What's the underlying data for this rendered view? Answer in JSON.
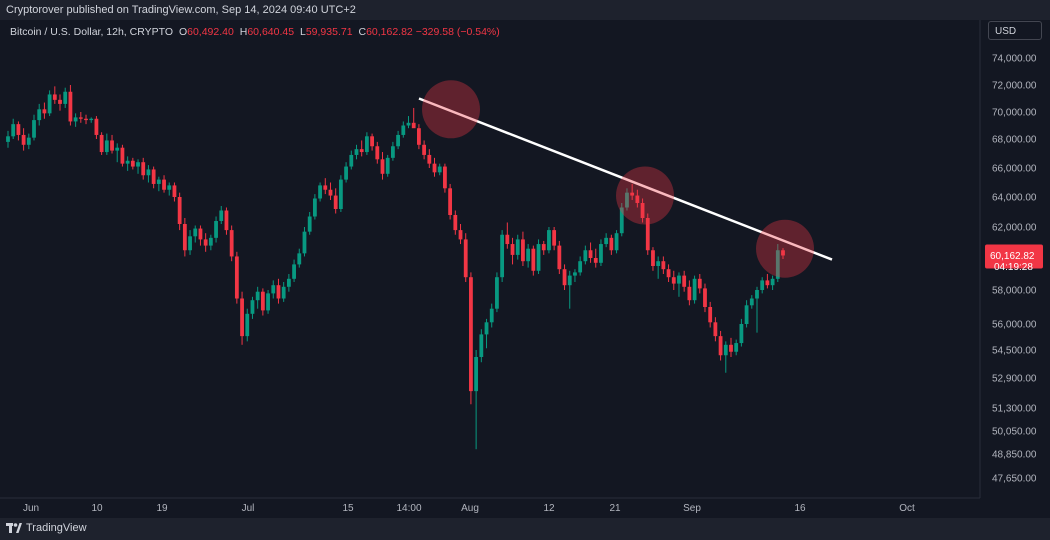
{
  "header": {
    "published": "Cryptorover published on TradingView.com, Sep 14, 2024 09:40 UTC+2"
  },
  "legend": {
    "symbol": "Bitcoin / U.S. Dollar, 12h, CRYPTO",
    "o_label": "O",
    "o_value": "60,492.40",
    "h_label": "H",
    "h_value": "60,640.45",
    "l_label": "L",
    "l_value": "59,935.71",
    "c_label": "C",
    "c_value": "60,162.82",
    "change": "−329.58 (−0.54%)"
  },
  "currency": "USD",
  "price_badge": {
    "price": "60,162.82",
    "countdown": "04:19:28"
  },
  "footer": {
    "brand": "TradingView"
  },
  "colors": {
    "up": "#089981",
    "down": "#f23645",
    "background": "#131722",
    "trendline": "#ffffff",
    "marker": "#f23645"
  },
  "chart_data": {
    "type": "candlestick",
    "y_ticks": [
      "74,000.00",
      "72,000.00",
      "70,000.00",
      "68,000.00",
      "66,000.00",
      "64,000.00",
      "62,000.00",
      "60,000.00",
      "58,000.00",
      "56,000.00",
      "54,500.00",
      "52,900.00",
      "51,300.00",
      "50,050.00",
      "48,850.00",
      "47,650.00"
    ],
    "x_ticks": [
      "Jun",
      "10",
      "19",
      "Jul",
      "15",
      "14:00",
      "Aug",
      "12",
      "21",
      "Sep",
      "16",
      "Oct"
    ],
    "trendline": {
      "start": [
        "2024-07-23",
        71000
      ],
      "end": [
        "2024-09-21",
        59900
      ]
    },
    "touch_points": [
      [
        "2024-07-27",
        70200
      ],
      [
        "2024-08-26",
        64100
      ],
      [
        "2024-09-14",
        60600
      ]
    ],
    "last_price": 60162.82,
    "candles": [
      [
        67800,
        68600,
        67400,
        68200
      ],
      [
        68200,
        69500,
        68000,
        69100
      ],
      [
        69100,
        69300,
        67900,
        68300
      ],
      [
        68300,
        68800,
        67200,
        67600
      ],
      [
        67600,
        68400,
        67300,
        68100
      ],
      [
        68100,
        69800,
        67900,
        69400
      ],
      [
        69400,
        70600,
        69000,
        70200
      ],
      [
        70200,
        70700,
        69500,
        69900
      ],
      [
        69900,
        71600,
        69700,
        71300
      ],
      [
        71300,
        71900,
        70600,
        70900
      ],
      [
        70900,
        71300,
        70100,
        70600
      ],
      [
        70600,
        71800,
        70300,
        71500
      ],
      [
        71500,
        72000,
        69000,
        69300
      ],
      [
        69300,
        69900,
        68900,
        69600
      ],
      [
        69600,
        70000,
        69200,
        69500
      ],
      [
        69500,
        69800,
        69100,
        69400
      ],
      [
        69400,
        69600,
        69200,
        69500
      ],
      [
        69500,
        69700,
        68000,
        68300
      ],
      [
        68300,
        68500,
        66900,
        67100
      ],
      [
        67100,
        68400,
        66900,
        67900
      ],
      [
        67900,
        68300,
        67000,
        67200
      ],
      [
        67200,
        67700,
        66400,
        67400
      ],
      [
        67400,
        67600,
        66100,
        66300
      ],
      [
        66300,
        66800,
        65800,
        66500
      ],
      [
        66500,
        66700,
        65900,
        66100
      ],
      [
        66100,
        66600,
        65600,
        66400
      ],
      [
        66400,
        66700,
        65200,
        65500
      ],
      [
        65500,
        66200,
        65000,
        65900
      ],
      [
        65900,
        66100,
        64600,
        64900
      ],
      [
        64900,
        65400,
        64400,
        65200
      ],
      [
        65200,
        65500,
        64300,
        64500
      ],
      [
        64500,
        65000,
        64100,
        64800
      ],
      [
        64800,
        65000,
        63700,
        64000
      ],
      [
        64000,
        64300,
        61800,
        62200
      ],
      [
        62200,
        62600,
        60100,
        60500
      ],
      [
        60500,
        61800,
        60200,
        61400
      ],
      [
        61400,
        62100,
        61000,
        61900
      ],
      [
        61900,
        62100,
        60800,
        61200
      ],
      [
        61200,
        61600,
        60400,
        60800
      ],
      [
        60800,
        61500,
        60500,
        61300
      ],
      [
        61300,
        62700,
        61000,
        62400
      ],
      [
        62400,
        63400,
        62200,
        63100
      ],
      [
        63100,
        63300,
        61500,
        61800
      ],
      [
        61800,
        62100,
        59800,
        60100
      ],
      [
        60100,
        60400,
        57200,
        57500
      ],
      [
        57500,
        57900,
        54800,
        55300
      ],
      [
        55300,
        56900,
        55000,
        56600
      ],
      [
        56600,
        57600,
        56300,
        57400
      ],
      [
        57400,
        58200,
        56900,
        57900
      ],
      [
        57900,
        58100,
        56500,
        56800
      ],
      [
        56800,
        58000,
        56600,
        57800
      ],
      [
        57800,
        58600,
        57500,
        58300
      ],
      [
        58300,
        58700,
        57200,
        57500
      ],
      [
        57500,
        58500,
        57300,
        58200
      ],
      [
        58200,
        59000,
        57900,
        58700
      ],
      [
        58700,
        59900,
        58500,
        59600
      ],
      [
        59600,
        60600,
        59400,
        60300
      ],
      [
        60300,
        62000,
        60100,
        61700
      ],
      [
        61700,
        63000,
        61500,
        62700
      ],
      [
        62700,
        64200,
        62500,
        63900
      ],
      [
        63900,
        65000,
        63700,
        64800
      ],
      [
        64800,
        65300,
        64200,
        64500
      ],
      [
        64500,
        65000,
        63800,
        64100
      ],
      [
        64100,
        64600,
        62900,
        63200
      ],
      [
        63200,
        65500,
        63000,
        65200
      ],
      [
        65200,
        66400,
        65000,
        66100
      ],
      [
        66100,
        67200,
        65900,
        66900
      ],
      [
        66900,
        67600,
        66600,
        67300
      ],
      [
        67300,
        67900,
        66800,
        67100
      ],
      [
        67100,
        68500,
        66900,
        68200
      ],
      [
        68200,
        68400,
        67200,
        67500
      ],
      [
        67500,
        67800,
        66300,
        66600
      ],
      [
        66600,
        67100,
        65200,
        65600
      ],
      [
        65600,
        66900,
        65400,
        66700
      ],
      [
        66700,
        67800,
        66500,
        67500
      ],
      [
        67500,
        68600,
        67300,
        68300
      ],
      [
        68300,
        69300,
        68100,
        69000
      ],
      [
        69000,
        69700,
        68800,
        69200
      ],
      [
        69200,
        70300,
        68900,
        68800
      ],
      [
        68800,
        69100,
        67300,
        67600
      ],
      [
        67600,
        67900,
        66600,
        66900
      ],
      [
        66900,
        67300,
        66000,
        66300
      ],
      [
        66300,
        66700,
        65400,
        65700
      ],
      [
        65700,
        66300,
        65500,
        66100
      ],
      [
        66100,
        66300,
        64300,
        64600
      ],
      [
        64600,
        64900,
        62500,
        62800
      ],
      [
        62800,
        63100,
        61500,
        61800
      ],
      [
        61800,
        62200,
        60900,
        61200
      ],
      [
        61200,
        61600,
        58500,
        58800
      ],
      [
        58800,
        59100,
        51500,
        52200
      ],
      [
        52200,
        54500,
        49100,
        54100
      ],
      [
        54100,
        55700,
        53800,
        55400
      ],
      [
        55400,
        56300,
        54600,
        56100
      ],
      [
        56100,
        57200,
        55800,
        56900
      ],
      [
        56900,
        59100,
        56700,
        58800
      ],
      [
        58800,
        61800,
        58500,
        61500
      ],
      [
        61500,
        62300,
        60600,
        60900
      ],
      [
        60900,
        61300,
        59600,
        60200
      ],
      [
        60200,
        61500,
        59900,
        61200
      ],
      [
        61200,
        61700,
        59500,
        59800
      ],
      [
        59800,
        60900,
        59400,
        60600
      ],
      [
        60600,
        60800,
        58900,
        59200
      ],
      [
        59200,
        61200,
        59000,
        60900
      ],
      [
        60900,
        61100,
        60200,
        60500
      ],
      [
        60500,
        62000,
        60300,
        61800
      ],
      [
        61800,
        62000,
        60500,
        60800
      ],
      [
        60800,
        61100,
        59000,
        59300
      ],
      [
        59300,
        59600,
        58000,
        58300
      ],
      [
        58300,
        59200,
        56900,
        58900
      ],
      [
        58900,
        59300,
        58500,
        59100
      ],
      [
        59100,
        60100,
        58900,
        59800
      ],
      [
        59800,
        60800,
        59600,
        60500
      ],
      [
        60500,
        61000,
        59700,
        60000
      ],
      [
        60000,
        60600,
        59400,
        59700
      ],
      [
        59700,
        61200,
        59500,
        60900
      ],
      [
        60900,
        61600,
        60700,
        61300
      ],
      [
        61300,
        61500,
        60200,
        60500
      ],
      [
        60500,
        61800,
        60300,
        61600
      ],
      [
        61600,
        63600,
        61400,
        63300
      ],
      [
        63300,
        64600,
        63100,
        64300
      ],
      [
        64300,
        64900,
        63800,
        64100
      ],
      [
        64100,
        64500,
        63300,
        63600
      ],
      [
        63600,
        63900,
        62300,
        62600
      ],
      [
        62600,
        62900,
        60200,
        60500
      ],
      [
        60500,
        60700,
        59200,
        59500
      ],
      [
        59500,
        60100,
        58700,
        59800
      ],
      [
        59800,
        60100,
        59000,
        59300
      ],
      [
        59300,
        59600,
        58500,
        58800
      ],
      [
        58800,
        59200,
        58000,
        58400
      ],
      [
        58400,
        59100,
        57600,
        58900
      ],
      [
        58900,
        59200,
        57900,
        58200
      ],
      [
        58200,
        58600,
        57100,
        57400
      ],
      [
        57400,
        58900,
        57200,
        58700
      ],
      [
        58700,
        59000,
        57800,
        58100
      ],
      [
        58100,
        58400,
        56700,
        57000
      ],
      [
        57000,
        57300,
        55800,
        56100
      ],
      [
        56100,
        56400,
        55000,
        55300
      ],
      [
        55300,
        55600,
        53900,
        54200
      ],
      [
        54200,
        55000,
        53200,
        54800
      ],
      [
        54800,
        55200,
        54100,
        54400
      ],
      [
        54400,
        55100,
        54200,
        54900
      ],
      [
        54900,
        56300,
        54700,
        56000
      ],
      [
        56000,
        57400,
        55800,
        57100
      ],
      [
        57100,
        57700,
        56900,
        57500
      ],
      [
        57500,
        58200,
        55500,
        58000
      ],
      [
        58000,
        58800,
        57800,
        58600
      ],
      [
        58600,
        59000,
        58100,
        58300
      ],
      [
        58300,
        58900,
        58000,
        58700
      ],
      [
        58700,
        60900,
        58500,
        60500
      ],
      [
        60500,
        60640,
        59936,
        60163
      ]
    ]
  }
}
